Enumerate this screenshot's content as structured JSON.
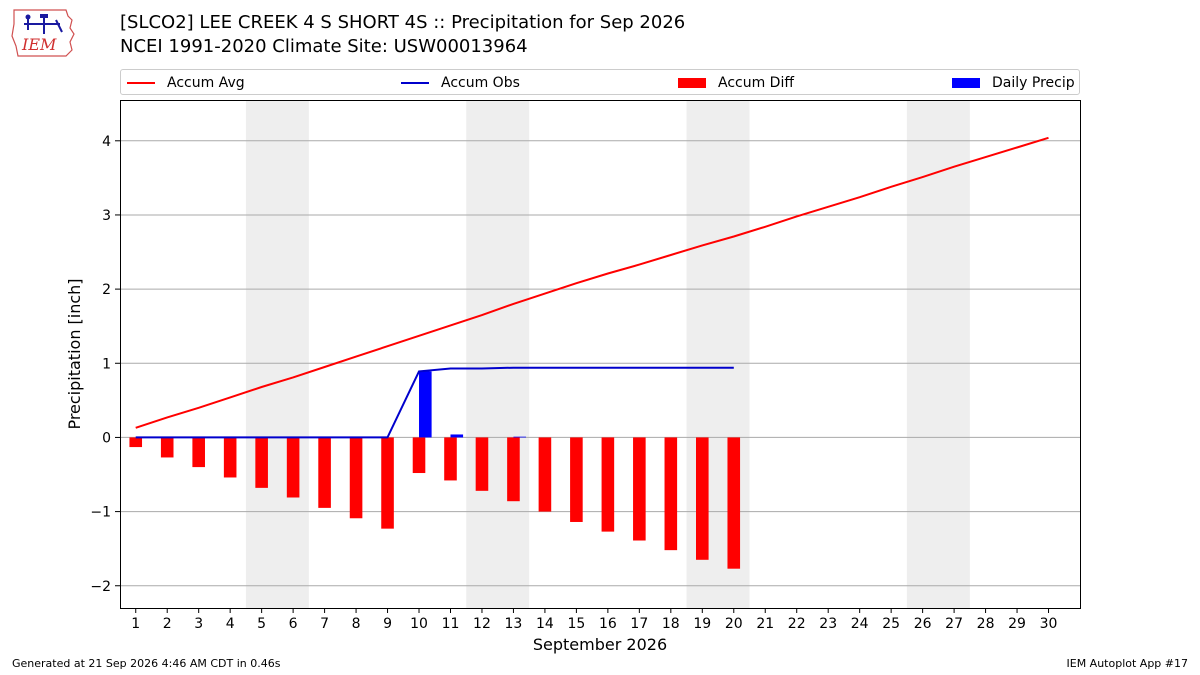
{
  "title_line1": "[SLCO2] LEE CREEK 4 S SHORT 4S :: Precipitation for Sep 2026",
  "title_line2": "NCEI 1991-2020 Climate Site: USW00013964",
  "footer_left": "Generated at 21 Sep 2026 4:46 AM CDT in 0.46s",
  "footer_right": "IEM Autoplot App #17",
  "logo_text": "IEM",
  "colors": {
    "avg": "#ff0000",
    "obs": "#0000cc",
    "diff": "#ff0000",
    "daily": "#0000ff",
    "weekend": "#eeeeee",
    "grid": "#aaaaaa"
  },
  "chart_data": {
    "type": "bar",
    "xlabel": "September 2026",
    "ylabel": "Precipitation [inch]",
    "xlim": [
      0.5,
      31.0
    ],
    "ylim": [
      -2.3,
      4.55
    ],
    "x_ticks": [
      1,
      2,
      3,
      4,
      5,
      6,
      7,
      8,
      9,
      10,
      11,
      12,
      13,
      14,
      15,
      16,
      17,
      18,
      19,
      20,
      21,
      22,
      23,
      24,
      25,
      26,
      27,
      28,
      29,
      30
    ],
    "y_ticks": [
      -2,
      -1,
      0,
      1,
      2,
      3,
      4
    ],
    "y_tick_labels": [
      "−2",
      "−1",
      "0",
      "1",
      "2",
      "3",
      "4"
    ],
    "weekend_bands": [
      [
        4.5,
        6.5
      ],
      [
        11.5,
        13.5
      ],
      [
        18.5,
        20.5
      ],
      [
        25.5,
        27.5
      ]
    ],
    "legend": [
      "Accum Avg",
      "Accum Obs",
      "Accum Diff",
      "Daily Precip"
    ],
    "days": [
      1,
      2,
      3,
      4,
      5,
      6,
      7,
      8,
      9,
      10,
      11,
      12,
      13,
      14,
      15,
      16,
      17,
      18,
      19,
      20,
      21,
      22,
      23,
      24,
      25,
      26,
      27,
      28,
      29,
      30
    ],
    "accum_avg": [
      0.13,
      0.27,
      0.4,
      0.54,
      0.68,
      0.81,
      0.95,
      1.09,
      1.23,
      1.37,
      1.51,
      1.65,
      1.8,
      1.94,
      2.08,
      2.21,
      2.33,
      2.46,
      2.59,
      2.71,
      2.84,
      2.98,
      3.11,
      3.24,
      3.38,
      3.51,
      3.65,
      3.78,
      3.91,
      4.04
    ],
    "accum_obs": [
      0,
      0,
      0,
      0,
      0,
      0,
      0,
      0,
      0,
      0.89,
      0.93,
      0.93,
      0.94,
      0.94,
      0.94,
      0.94,
      0.94,
      0.94,
      0.94,
      0.94
    ],
    "accum_diff": [
      -0.13,
      -0.27,
      -0.4,
      -0.54,
      -0.68,
      -0.81,
      -0.95,
      -1.09,
      -1.23,
      -0.48,
      -0.58,
      -0.72,
      -0.86,
      -1.0,
      -1.14,
      -1.27,
      -1.39,
      -1.52,
      -1.65,
      -1.77
    ],
    "daily_precip": [
      0,
      0,
      0,
      0,
      0,
      0,
      0,
      0,
      0,
      0.89,
      0.04,
      0,
      0.01,
      0,
      0,
      0,
      0,
      0,
      0,
      0
    ]
  }
}
